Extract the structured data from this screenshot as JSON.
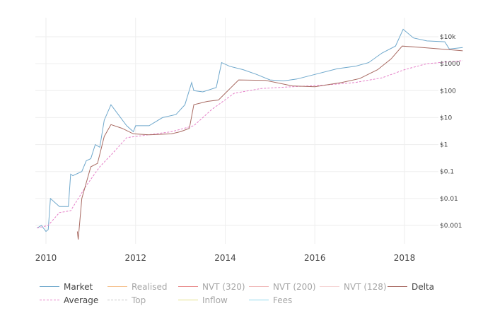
{
  "chart_data": {
    "type": "line",
    "title": "",
    "xlabel": "",
    "ylabel": "",
    "y_scale": "log",
    "y_axis_position": "right",
    "grid": true,
    "legend_position": "bottom",
    "x_ticks": [
      "2010",
      "2012",
      "2014",
      "2016",
      "2018"
    ],
    "y_ticks": [
      "$0.001",
      "$0.01",
      "$0.1",
      "$1",
      "$10",
      "$100",
      "$1000",
      "$10k"
    ],
    "x_range": [
      2009.8,
      2019.3
    ],
    "ylim": [
      0.0002,
      30000
    ],
    "series": [
      {
        "name": "Market",
        "color": "#6fa8cc",
        "dash": "solid",
        "visible": true,
        "x": [
          2009.8,
          2009.9,
          2010.0,
          2010.05,
          2010.1,
          2010.3,
          2010.5,
          2010.55,
          2010.6,
          2010.8,
          2010.9,
          2011.0,
          2011.1,
          2011.2,
          2011.3,
          2011.45,
          2011.6,
          2011.8,
          2011.95,
          2012.0,
          2012.3,
          2012.6,
          2012.9,
          2013.1,
          2013.25,
          2013.3,
          2013.5,
          2013.8,
          2013.92,
          2014.1,
          2014.4,
          2014.7,
          2015.0,
          2015.3,
          2015.6,
          2016.0,
          2016.5,
          2016.9,
          2017.2,
          2017.5,
          2017.8,
          2017.97,
          2018.2,
          2018.5,
          2018.9,
          2019.0,
          2019.3
        ],
        "values": [
          0.0008,
          0.001,
          0.0006,
          0.0007,
          0.01,
          0.005,
          0.005,
          0.08,
          0.07,
          0.1,
          0.25,
          0.3,
          1,
          0.8,
          8,
          30,
          14,
          5,
          3,
          5,
          5,
          10,
          13,
          30,
          200,
          100,
          90,
          130,
          1100,
          800,
          600,
          400,
          250,
          230,
          270,
          400,
          650,
          800,
          1100,
          2500,
          4500,
          19000,
          9000,
          7000,
          6500,
          3500,
          4000
        ]
      },
      {
        "name": "Average",
        "color": "#e57fc8",
        "dash": "dashed",
        "visible": true,
        "x": [
          2009.8,
          2010.05,
          2010.3,
          2010.55,
          2010.9,
          2011.2,
          2011.5,
          2011.8,
          2012.2,
          2012.8,
          2013.3,
          2013.7,
          2014.2,
          2014.8,
          2015.5,
          2016.2,
          2016.9,
          2017.5,
          2018.0,
          2018.5,
          2019.3
        ],
        "values": [
          0.0008,
          0.001,
          0.003,
          0.0035,
          0.03,
          0.15,
          0.5,
          1.8,
          2.2,
          3,
          5,
          20,
          80,
          120,
          140,
          160,
          200,
          300,
          600,
          1000,
          1300
        ]
      },
      {
        "name": "Delta",
        "color": "#a86a62",
        "dash": "solid",
        "visible": true,
        "x": [
          2010.7,
          2010.72,
          2010.8,
          2011.0,
          2011.15,
          2011.3,
          2011.45,
          2011.7,
          2011.95,
          2012.3,
          2012.8,
          2013.0,
          2013.2,
          2013.3,
          2013.6,
          2013.85,
          2014.3,
          2014.9,
          2015.5,
          2016.0,
          2016.6,
          2017.0,
          2017.4,
          2017.7,
          2017.95,
          2018.4,
          2019.3
        ],
        "values": [
          0.0006,
          0.0003,
          0.01,
          0.15,
          0.2,
          2,
          5.5,
          4,
          2.5,
          2.3,
          2.5,
          3,
          4,
          30,
          40,
          45,
          250,
          240,
          150,
          140,
          200,
          280,
          600,
          1500,
          4500,
          4000,
          3000
        ]
      },
      {
        "name": "Realised",
        "color": "#f5c08c",
        "dash": "solid",
        "visible": false
      },
      {
        "name": "NVT (320)",
        "color": "#e88a8a",
        "dash": "solid",
        "visible": false
      },
      {
        "name": "NVT (200)",
        "color": "#f0b8b8",
        "dash": "solid",
        "visible": false
      },
      {
        "name": "NVT (128)",
        "color": "#f5d4d4",
        "dash": "solid",
        "visible": false
      },
      {
        "name": "Top",
        "color": "#c8c8c8",
        "dash": "dashed",
        "visible": false
      },
      {
        "name": "Inflow",
        "color": "#e4e08a",
        "dash": "solid",
        "visible": false
      },
      {
        "name": "Fees",
        "color": "#8fd8ec",
        "dash": "solid",
        "visible": false
      }
    ]
  },
  "legend": {
    "row1": [
      {
        "label": "Market",
        "color": "#6fa8cc",
        "dash": "solid",
        "on": true
      },
      {
        "label": "Realised",
        "color": "#f5c08c",
        "dash": "solid",
        "on": false
      },
      {
        "label": "NVT (320)",
        "color": "#e88a8a",
        "dash": "solid",
        "on": false
      },
      {
        "label": "NVT (200)",
        "color": "#f0b8b8",
        "dash": "solid",
        "on": false
      },
      {
        "label": "NVT (128)",
        "color": "#f5d4d4",
        "dash": "solid",
        "on": false
      },
      {
        "label": "Delta",
        "color": "#a86a62",
        "dash": "solid",
        "on": true
      }
    ],
    "row2": [
      {
        "label": "Average",
        "color": "#e57fc8",
        "dash": "dashed",
        "on": true
      },
      {
        "label": "Top",
        "color": "#c8c8c8",
        "dash": "dashed",
        "on": false
      },
      {
        "label": "Inflow",
        "color": "#e4e08a",
        "dash": "solid",
        "on": false
      },
      {
        "label": "Fees",
        "color": "#8fd8ec",
        "dash": "solid",
        "on": false
      }
    ]
  }
}
